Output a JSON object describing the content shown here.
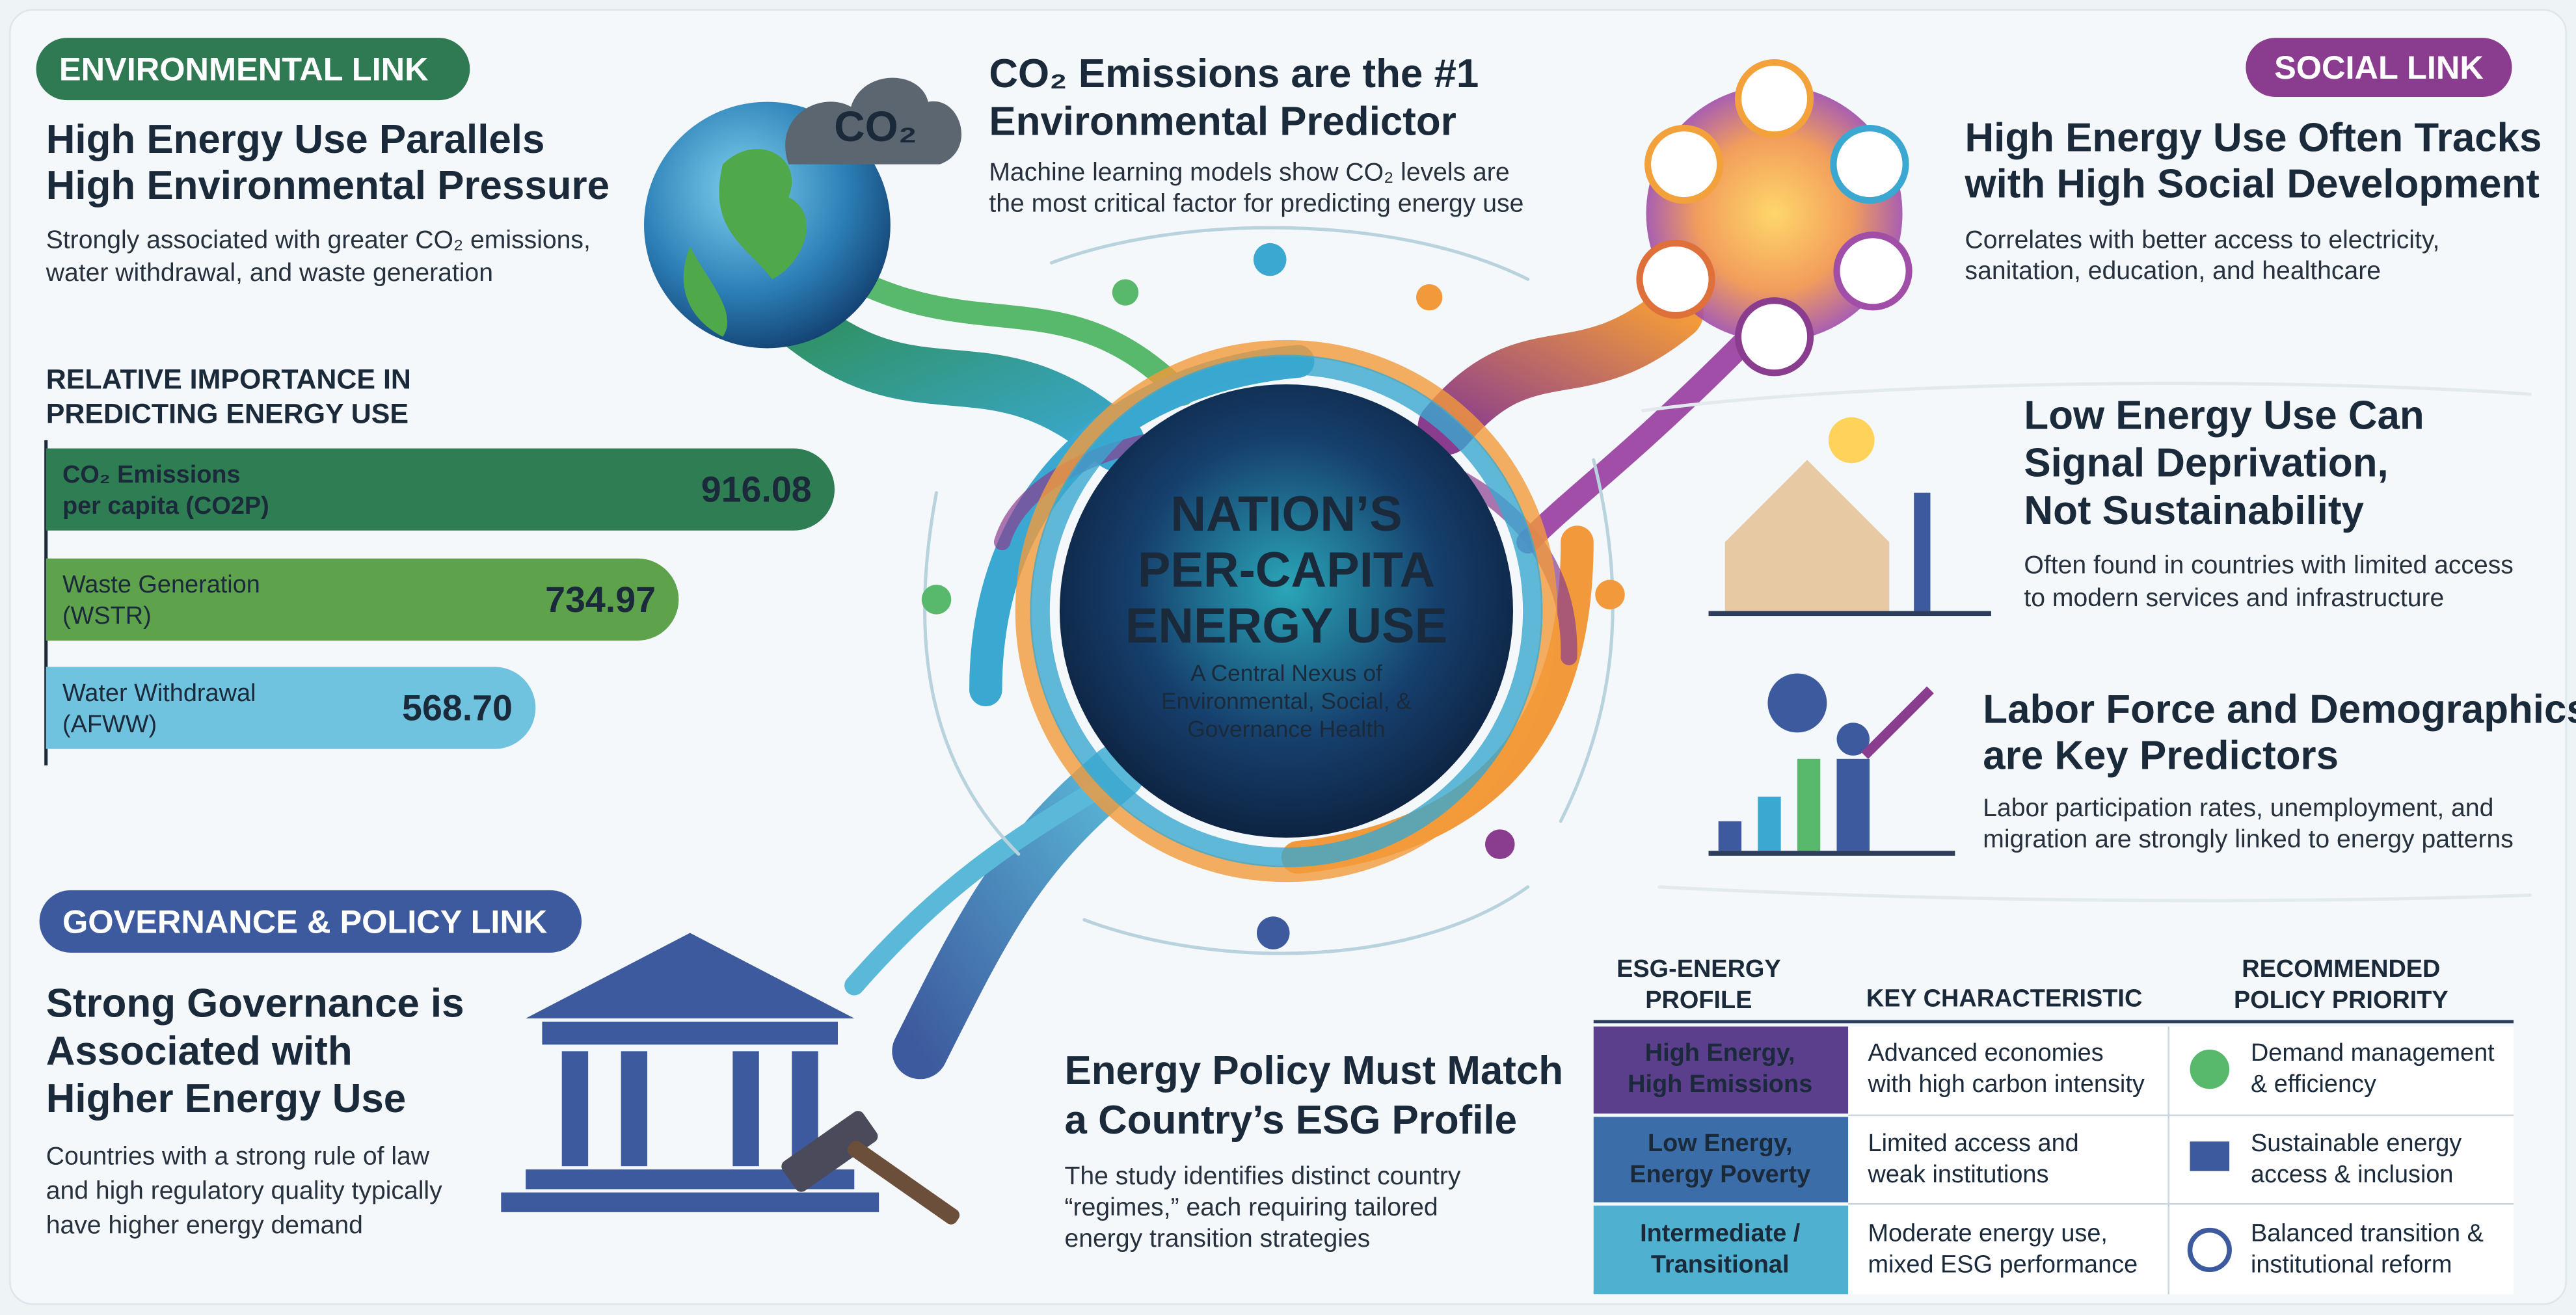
{
  "environmental": {
    "badge": "ENVIRONMENTAL LINK",
    "heading": [
      "High Energy Use Parallels",
      "High Environmental Pressure"
    ],
    "text": [
      "Strongly associated with greater CO₂ emissions,",
      "water withdrawal, and waste generation"
    ]
  },
  "globe_label": "CO₂",
  "co2_predictor": {
    "heading": [
      "CO₂ Emissions are the #1",
      "Environmental Predictor"
    ],
    "text": [
      "Machine learning models show CO₂ levels are",
      "the most critical factor for predicting energy use"
    ]
  },
  "social": {
    "badge": "SOCIAL LINK",
    "heading": [
      "High Energy Use Often Tracks",
      "with High Social Development"
    ],
    "text": [
      "Correlates with better access to electricity,",
      "sanitation, education, and healthcare"
    ]
  },
  "low_energy": {
    "heading": [
      "Low Energy Use Can",
      "Signal Deprivation,",
      "Not Sustainability"
    ],
    "text": [
      "Often found in countries with limited access",
      "to modern services and infrastructure"
    ]
  },
  "labor": {
    "heading": [
      "Labor Force and Demographics",
      "are Key Predictors"
    ],
    "text": [
      "Labor participation rates, unemployment, and",
      "migration are strongly linked to energy patterns"
    ]
  },
  "governance": {
    "badge": "GOVERNANCE & POLICY LINK",
    "heading": [
      "Strong Governance is",
      "Associated with",
      "Higher Energy Use"
    ],
    "text": [
      "Countries with a strong rule of law",
      "and high regulatory quality typically",
      "have higher energy demand"
    ]
  },
  "center": {
    "title": [
      "NATION’S",
      "PER-CAPITA",
      "ENERGY USE"
    ],
    "subtitle": [
      "A Central Nexus of",
      "Environmental, Social, &",
      "Governance Health"
    ]
  },
  "policy": {
    "heading": [
      "Energy Policy Must Match",
      "a Country’s ESG Profile"
    ],
    "text": [
      "The study identifies distinct country",
      "“regimes,” each requiring tailored",
      "energy transition strategies"
    ]
  },
  "table": {
    "headers": [
      [
        "ESG-ENERGY",
        "PROFILE"
      ],
      [
        "KEY CHARACTERISTIC"
      ],
      [
        "RECOMMENDED",
        "POLICY PRIORITY"
      ]
    ],
    "rows": [
      [
        [
          "High Energy,",
          "High Emissions"
        ],
        [
          "Advanced economies",
          "with high carbon intensity"
        ],
        [
          "Demand management",
          "& efficiency"
        ]
      ],
      [
        [
          "Low Energy,",
          "Energy Poverty"
        ],
        [
          "Limited access and",
          "weak institutions"
        ],
        [
          "Sustainable energy",
          "access & inclusion"
        ]
      ],
      [
        [
          "Intermediate /",
          "Transitional"
        ],
        [
          "Moderate energy use,",
          "mixed ESG performance"
        ],
        [
          "Balanced transition &",
          "institutional reform"
        ]
      ]
    ]
  },
  "chart_data": {
    "type": "bar",
    "orientation": "horizontal",
    "title": [
      "RELATIVE IMPORTANCE IN",
      "PREDICTING ENERGY USE"
    ],
    "categories": [
      [
        "CO₂ Emissions",
        "per capita (CO2P)"
      ],
      [
        "Waste Generation",
        "(WSTR)"
      ],
      [
        "Water Withdrawal",
        "(AFWW)"
      ]
    ],
    "values": [
      916.08,
      734.97,
      568.7
    ],
    "value_labels": [
      "916.08",
      "734.97",
      "568.70"
    ],
    "colors": [
      "#2f7d52",
      "#5fa24c",
      "#6fc3df"
    ]
  }
}
